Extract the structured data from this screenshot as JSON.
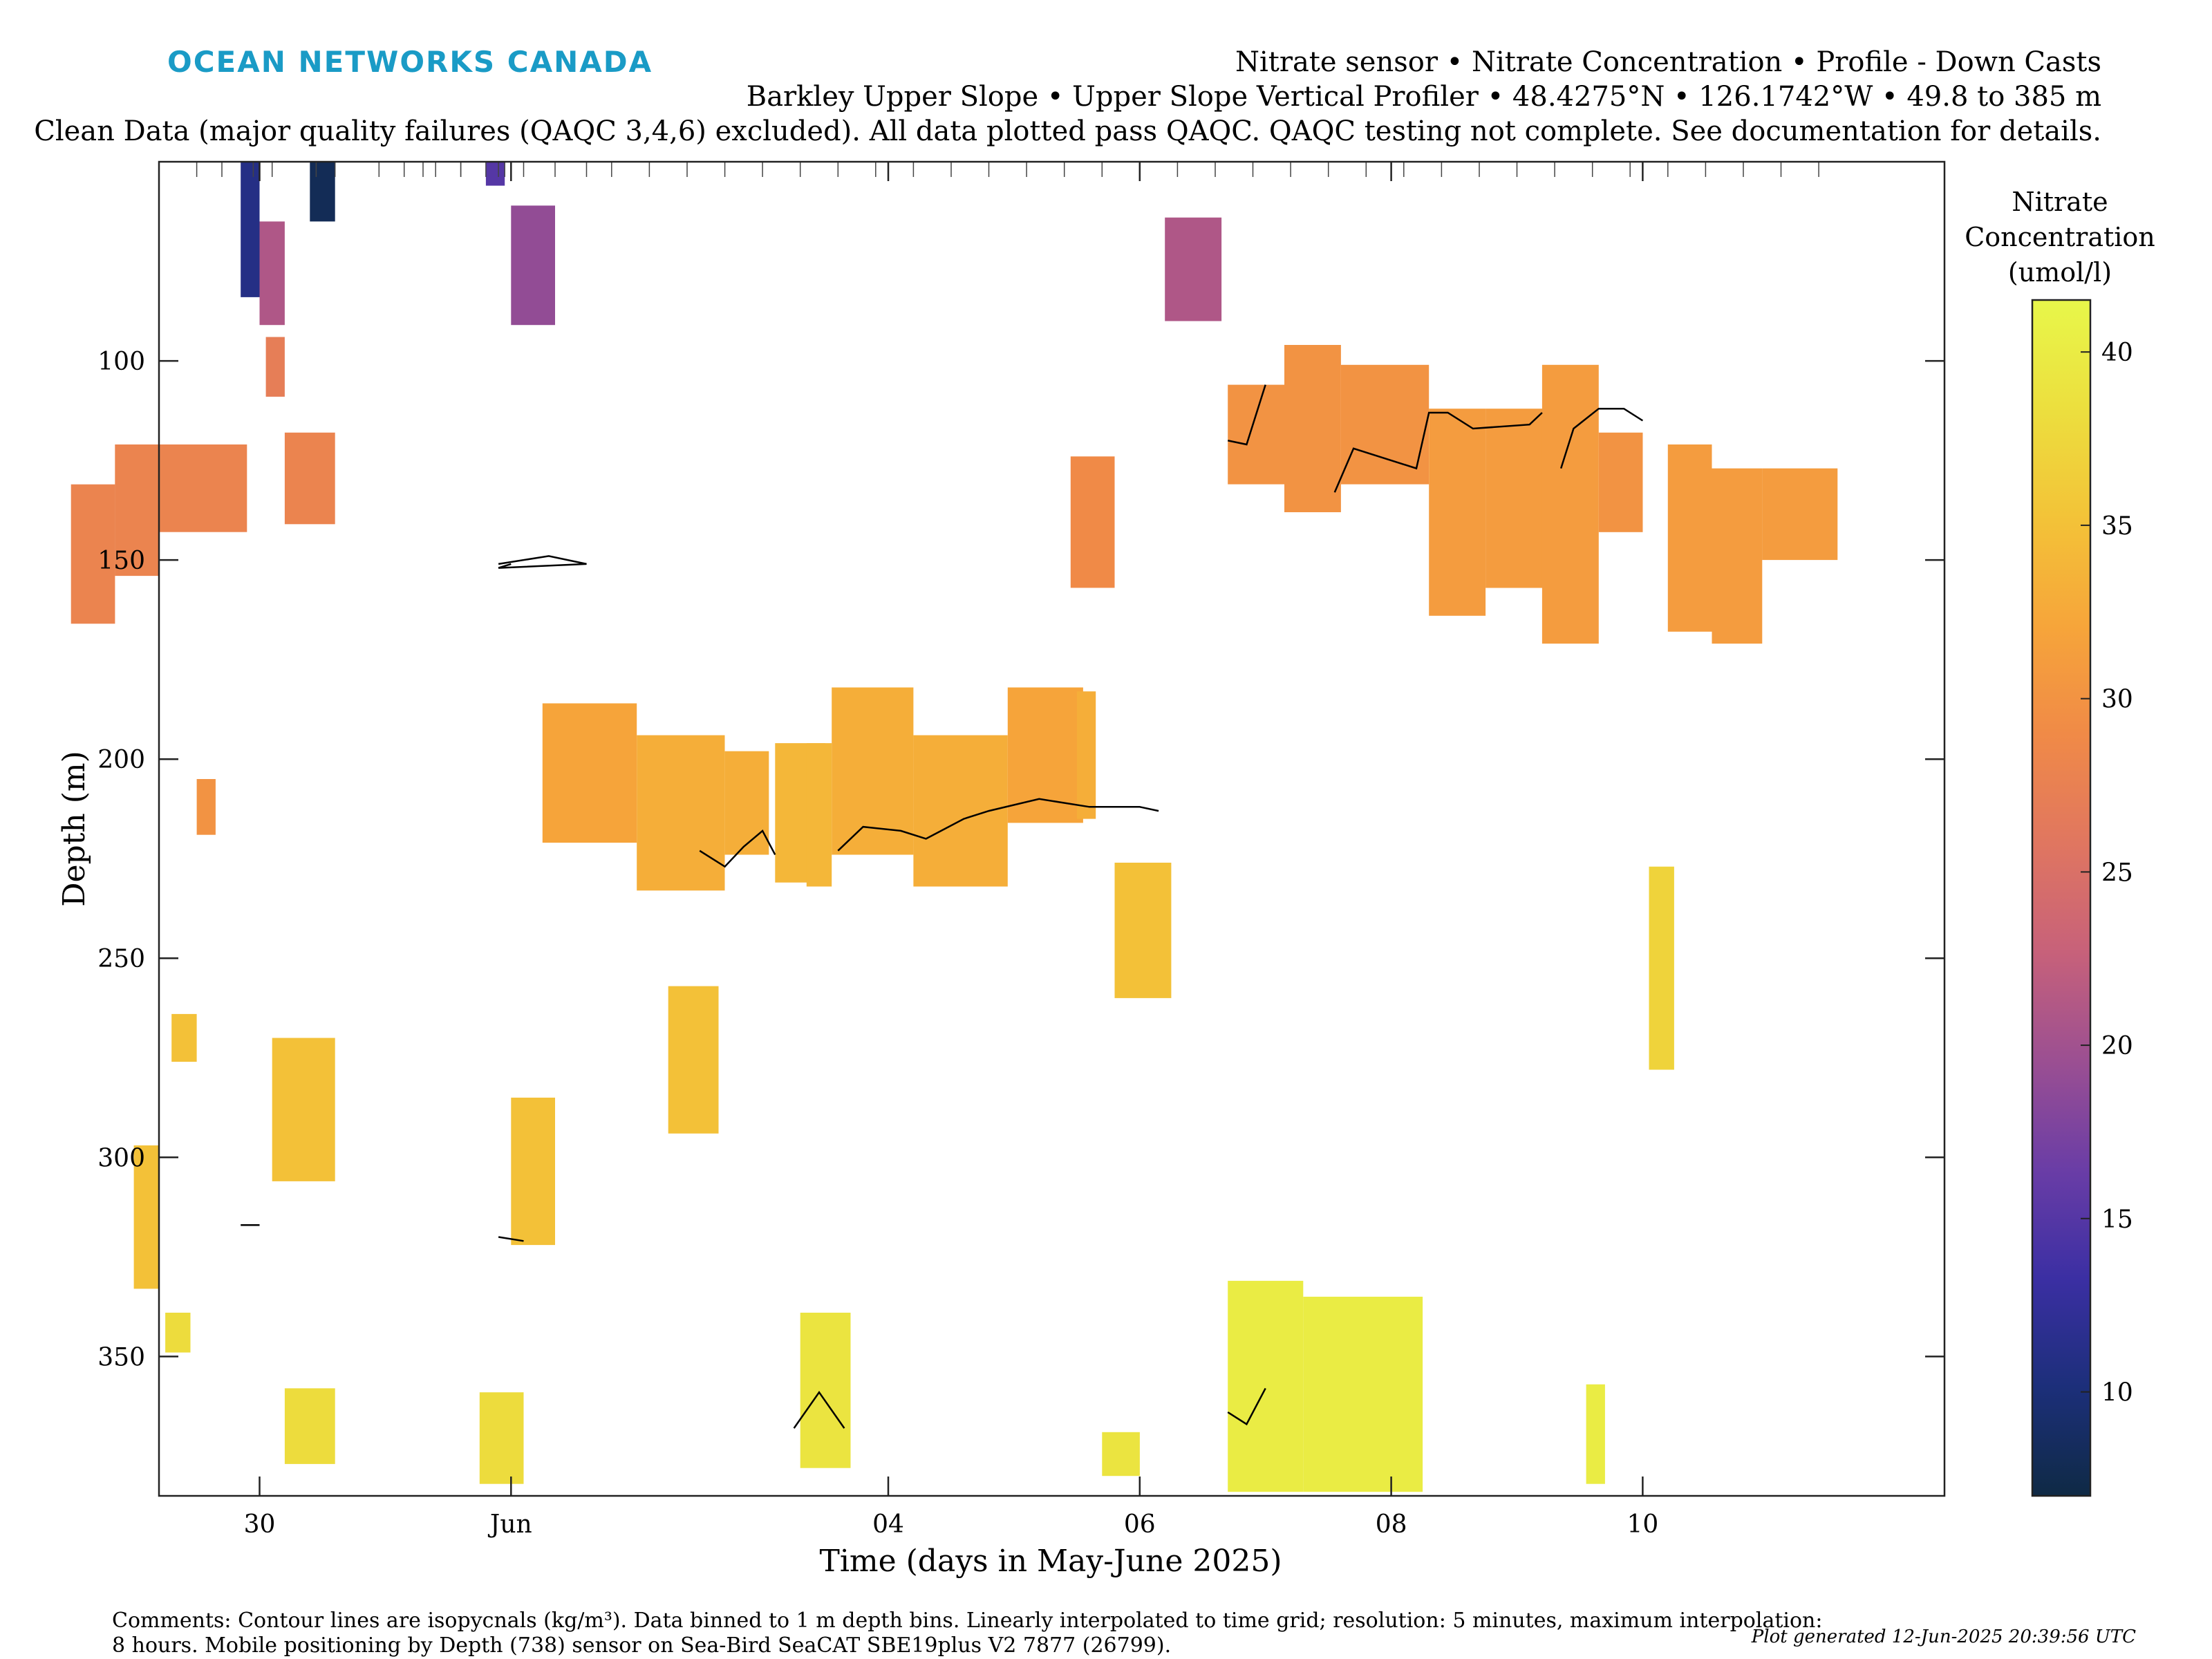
{
  "header": {
    "brand": "OCEAN NETWORKS CANADA",
    "title_line1": "Nitrate sensor • Nitrate Concentration • Profile - Down Casts",
    "title_line2": "Barkley Upper Slope • Upper Slope Vertical Profiler • 48.4275°N • 126.1742°W • 49.8 to 385 m",
    "title_line3": "Clean Data (major quality failures (QAQC 3,4,6) excluded). All data plotted pass QAQC. QAQC testing not complete. See documentation for details."
  },
  "footer": {
    "comment_line1": "Comments: Contour lines are isopycnals (kg/m³). Data binned to 1 m depth bins. Linearly interpolated to time grid; resolution: 5 minutes, maximum interpolation:",
    "comment_line2": "8 hours. Mobile positioning by Depth (738) sensor on Sea-Bird SeaCAT SBE19plus V2 7877 (26799).",
    "generated": "Plot generated 12-Jun-2025 20:39:56 UTC"
  },
  "colors": {
    "brand": "#1a9bc6",
    "colormap": [
      "#0f2a45",
      "#1c2f7a",
      "#3b2fa3",
      "#6a3da6",
      "#9b4f92",
      "#c7617a",
      "#e07660",
      "#f08a47",
      "#f6a53a",
      "#f3c338",
      "#ecdf3e",
      "#e8f74a"
    ]
  },
  "chart_data": {
    "type": "heatmap",
    "xlabel": "Time (days in May-June 2025)",
    "ylabel": "Depth (m)",
    "x_ticks": [
      "30",
      "Jun",
      "04",
      "06",
      "08",
      "10"
    ],
    "y_ticks": [
      100,
      150,
      200,
      250,
      300,
      350
    ],
    "ylim": [
      50,
      385
    ],
    "y_reversed": true,
    "colorbar": {
      "label_lines": [
        "Nitrate",
        "Concentration",
        "(umol/l)"
      ],
      "range": [
        7,
        41.5
      ],
      "ticks": [
        10,
        15,
        20,
        25,
        30,
        35,
        40
      ]
    },
    "x_axis_note": "day of month; 1 = Jun, 30 = May 30",
    "cells": [
      {
        "t": [
          29.85,
          30.0
        ],
        "d": [
          50,
          84
        ],
        "v": 11
      },
      {
        "t": [
          30.0,
          30.2
        ],
        "d": [
          65,
          91
        ],
        "v": 21
      },
      {
        "t": [
          30.05,
          30.2
        ],
        "d": [
          94,
          109
        ],
        "v": 27
      },
      {
        "t": [
          30.2,
          30.6
        ],
        "d": [
          118,
          141
        ],
        "v": 28
      },
      {
        "t": [
          30.4,
          30.6
        ],
        "d": [
          50,
          65
        ],
        "v": 8
      },
      {
        "t": [
          31.8,
          31.95
        ],
        "d": [
          50,
          56
        ],
        "v": 15
      },
      {
        "t": [
          1.0,
          1.35
        ],
        "d": [
          61,
          91
        ],
        "v": 19
      },
      {
        "t": [
          29.5,
          29.65
        ],
        "d": [
          205,
          219
        ],
        "v": 30
      },
      {
        "t": [
          28.5,
          28.85
        ],
        "d": [
          131,
          166
        ],
        "v": 28
      },
      {
        "t": [
          28.85,
          29.2
        ],
        "d": [
          121,
          154
        ],
        "v": 28
      },
      {
        "t": [
          29.2,
          29.9
        ],
        "d": [
          121,
          143
        ],
        "v": 28
      },
      {
        "t": [
          6.2,
          6.65
        ],
        "d": [
          64,
          90
        ],
        "v": 21
      },
      {
        "t": [
          5.45,
          5.8
        ],
        "d": [
          124,
          157
        ],
        "v": 29
      },
      {
        "t": [
          6.7,
          7.15
        ],
        "d": [
          106,
          131
        ],
        "v": 30
      },
      {
        "t": [
          7.15,
          7.6
        ],
        "d": [
          96,
          138
        ],
        "v": 30
      },
      {
        "t": [
          7.6,
          8.3
        ],
        "d": [
          101,
          131
        ],
        "v": 30
      },
      {
        "t": [
          8.3,
          8.75
        ],
        "d": [
          112,
          164
        ],
        "v": 31
      },
      {
        "t": [
          8.75,
          9.2
        ],
        "d": [
          112,
          157
        ],
        "v": 31
      },
      {
        "t": [
          9.2,
          9.65
        ],
        "d": [
          101,
          171
        ],
        "v": 31
      },
      {
        "t": [
          9.65,
          10.0
        ],
        "d": [
          118,
          143
        ],
        "v": 30
      },
      {
        "t": [
          10.2,
          10.55
        ],
        "d": [
          121,
          168
        ],
        "v": 31
      },
      {
        "t": [
          10.55,
          10.95
        ],
        "d": [
          127,
          171
        ],
        "v": 31
      },
      {
        "t": [
          10.95,
          11.55
        ],
        "d": [
          127,
          150
        ],
        "v": 31
      },
      {
        "t": [
          1.25,
          2.0
        ],
        "d": [
          186,
          221
        ],
        "v": 32
      },
      {
        "t": [
          2.0,
          2.7
        ],
        "d": [
          194,
          233
        ],
        "v": 33
      },
      {
        "t": [
          2.7,
          3.05
        ],
        "d": [
          198,
          224
        ],
        "v": 33
      },
      {
        "t": [
          3.1,
          3.5
        ],
        "d": [
          196,
          231
        ],
        "v": 34
      },
      {
        "t": [
          3.35,
          3.55
        ],
        "d": [
          196,
          232
        ],
        "v": 34
      },
      {
        "t": [
          3.55,
          4.2
        ],
        "d": [
          182,
          224
        ],
        "v": 33
      },
      {
        "t": [
          4.2,
          4.95
        ],
        "d": [
          194,
          232
        ],
        "v": 33
      },
      {
        "t": [
          4.95,
          5.55
        ],
        "d": [
          182,
          216
        ],
        "v": 32
      },
      {
        "t": [
          5.5,
          5.65
        ],
        "d": [
          183,
          215
        ],
        "v": 33
      },
      {
        "t": [
          5.8,
          6.25
        ],
        "d": [
          226,
          260
        ],
        "v": 35
      },
      {
        "t": [
          29.3,
          29.5
        ],
        "d": [
          264,
          276
        ],
        "v": 35
      },
      {
        "t": [
          30.1,
          30.6
        ],
        "d": [
          270,
          306
        ],
        "v": 35
      },
      {
        "t": [
          29.0,
          29.2
        ],
        "d": [
          297,
          333
        ],
        "v": 35
      },
      {
        "t": [
          2.25,
          2.65
        ],
        "d": [
          257,
          294
        ],
        "v": 35
      },
      {
        "t": [
          1.0,
          1.35
        ],
        "d": [
          285,
          322
        ],
        "v": 35
      },
      {
        "t": [
          10.05,
          10.25
        ],
        "d": [
          227,
          278
        ],
        "v": 37
      },
      {
        "t": [
          29.25,
          29.45
        ],
        "d": [
          339,
          349
        ],
        "v": 38
      },
      {
        "t": [
          30.2,
          30.6
        ],
        "d": [
          358,
          377
        ],
        "v": 38
      },
      {
        "t": [
          0.75,
          1.1
        ],
        "d": [
          359,
          382
        ],
        "v": 38
      },
      {
        "t": [
          3.3,
          3.7
        ],
        "d": [
          339,
          378
        ],
        "v": 39
      },
      {
        "t": [
          5.7,
          6.0
        ],
        "d": [
          369,
          380
        ],
        "v": 39
      },
      {
        "t": [
          6.7,
          7.3
        ],
        "d": [
          331,
          384
        ],
        "v": 40
      },
      {
        "t": [
          7.3,
          8.25
        ],
        "d": [
          335,
          384
        ],
        "v": 40
      },
      {
        "t": [
          9.55,
          9.7
        ],
        "d": [
          357,
          382
        ],
        "v": 40
      }
    ],
    "isopycnals": [
      [
        [
          31.9,
          151
        ],
        [
          32.3,
          149
        ],
        [
          32.6,
          151
        ],
        [
          0.9,
          152
        ],
        [
          1.0,
          151
        ]
      ],
      [
        [
          2.5,
          223
        ],
        [
          2.7,
          227
        ],
        [
          2.85,
          222
        ],
        [
          3.0,
          218
        ],
        [
          3.1,
          224
        ]
      ],
      [
        [
          3.6,
          223
        ],
        [
          3.8,
          217
        ],
        [
          4.1,
          218
        ],
        [
          4.3,
          220
        ],
        [
          4.6,
          215
        ],
        [
          4.8,
          213
        ],
        [
          5.2,
          210
        ],
        [
          5.6,
          212
        ],
        [
          6.0,
          212
        ],
        [
          6.15,
          213
        ]
      ],
      [
        [
          6.7,
          120
        ],
        [
          6.85,
          121
        ],
        [
          7.0,
          106
        ]
      ],
      [
        [
          7.55,
          133
        ],
        [
          7.7,
          122
        ],
        [
          8.2,
          127
        ],
        [
          8.3,
          113
        ],
        [
          8.45,
          113
        ],
        [
          8.65,
          117
        ],
        [
          9.1,
          116
        ],
        [
          9.2,
          113
        ]
      ],
      [
        [
          9.35,
          127
        ],
        [
          9.45,
          117
        ],
        [
          9.65,
          112
        ],
        [
          9.85,
          112
        ],
        [
          10.0,
          115
        ]
      ],
      [
        [
          3.25,
          368
        ],
        [
          3.45,
          359
        ],
        [
          3.65,
          368
        ]
      ],
      [
        [
          6.7,
          364
        ],
        [
          6.85,
          367
        ],
        [
          7.0,
          358
        ]
      ],
      [
        [
          29.85,
          317
        ],
        [
          30.0,
          317
        ]
      ],
      [
        [
          0.9,
          320
        ],
        [
          1.1,
          321
        ]
      ]
    ]
  }
}
